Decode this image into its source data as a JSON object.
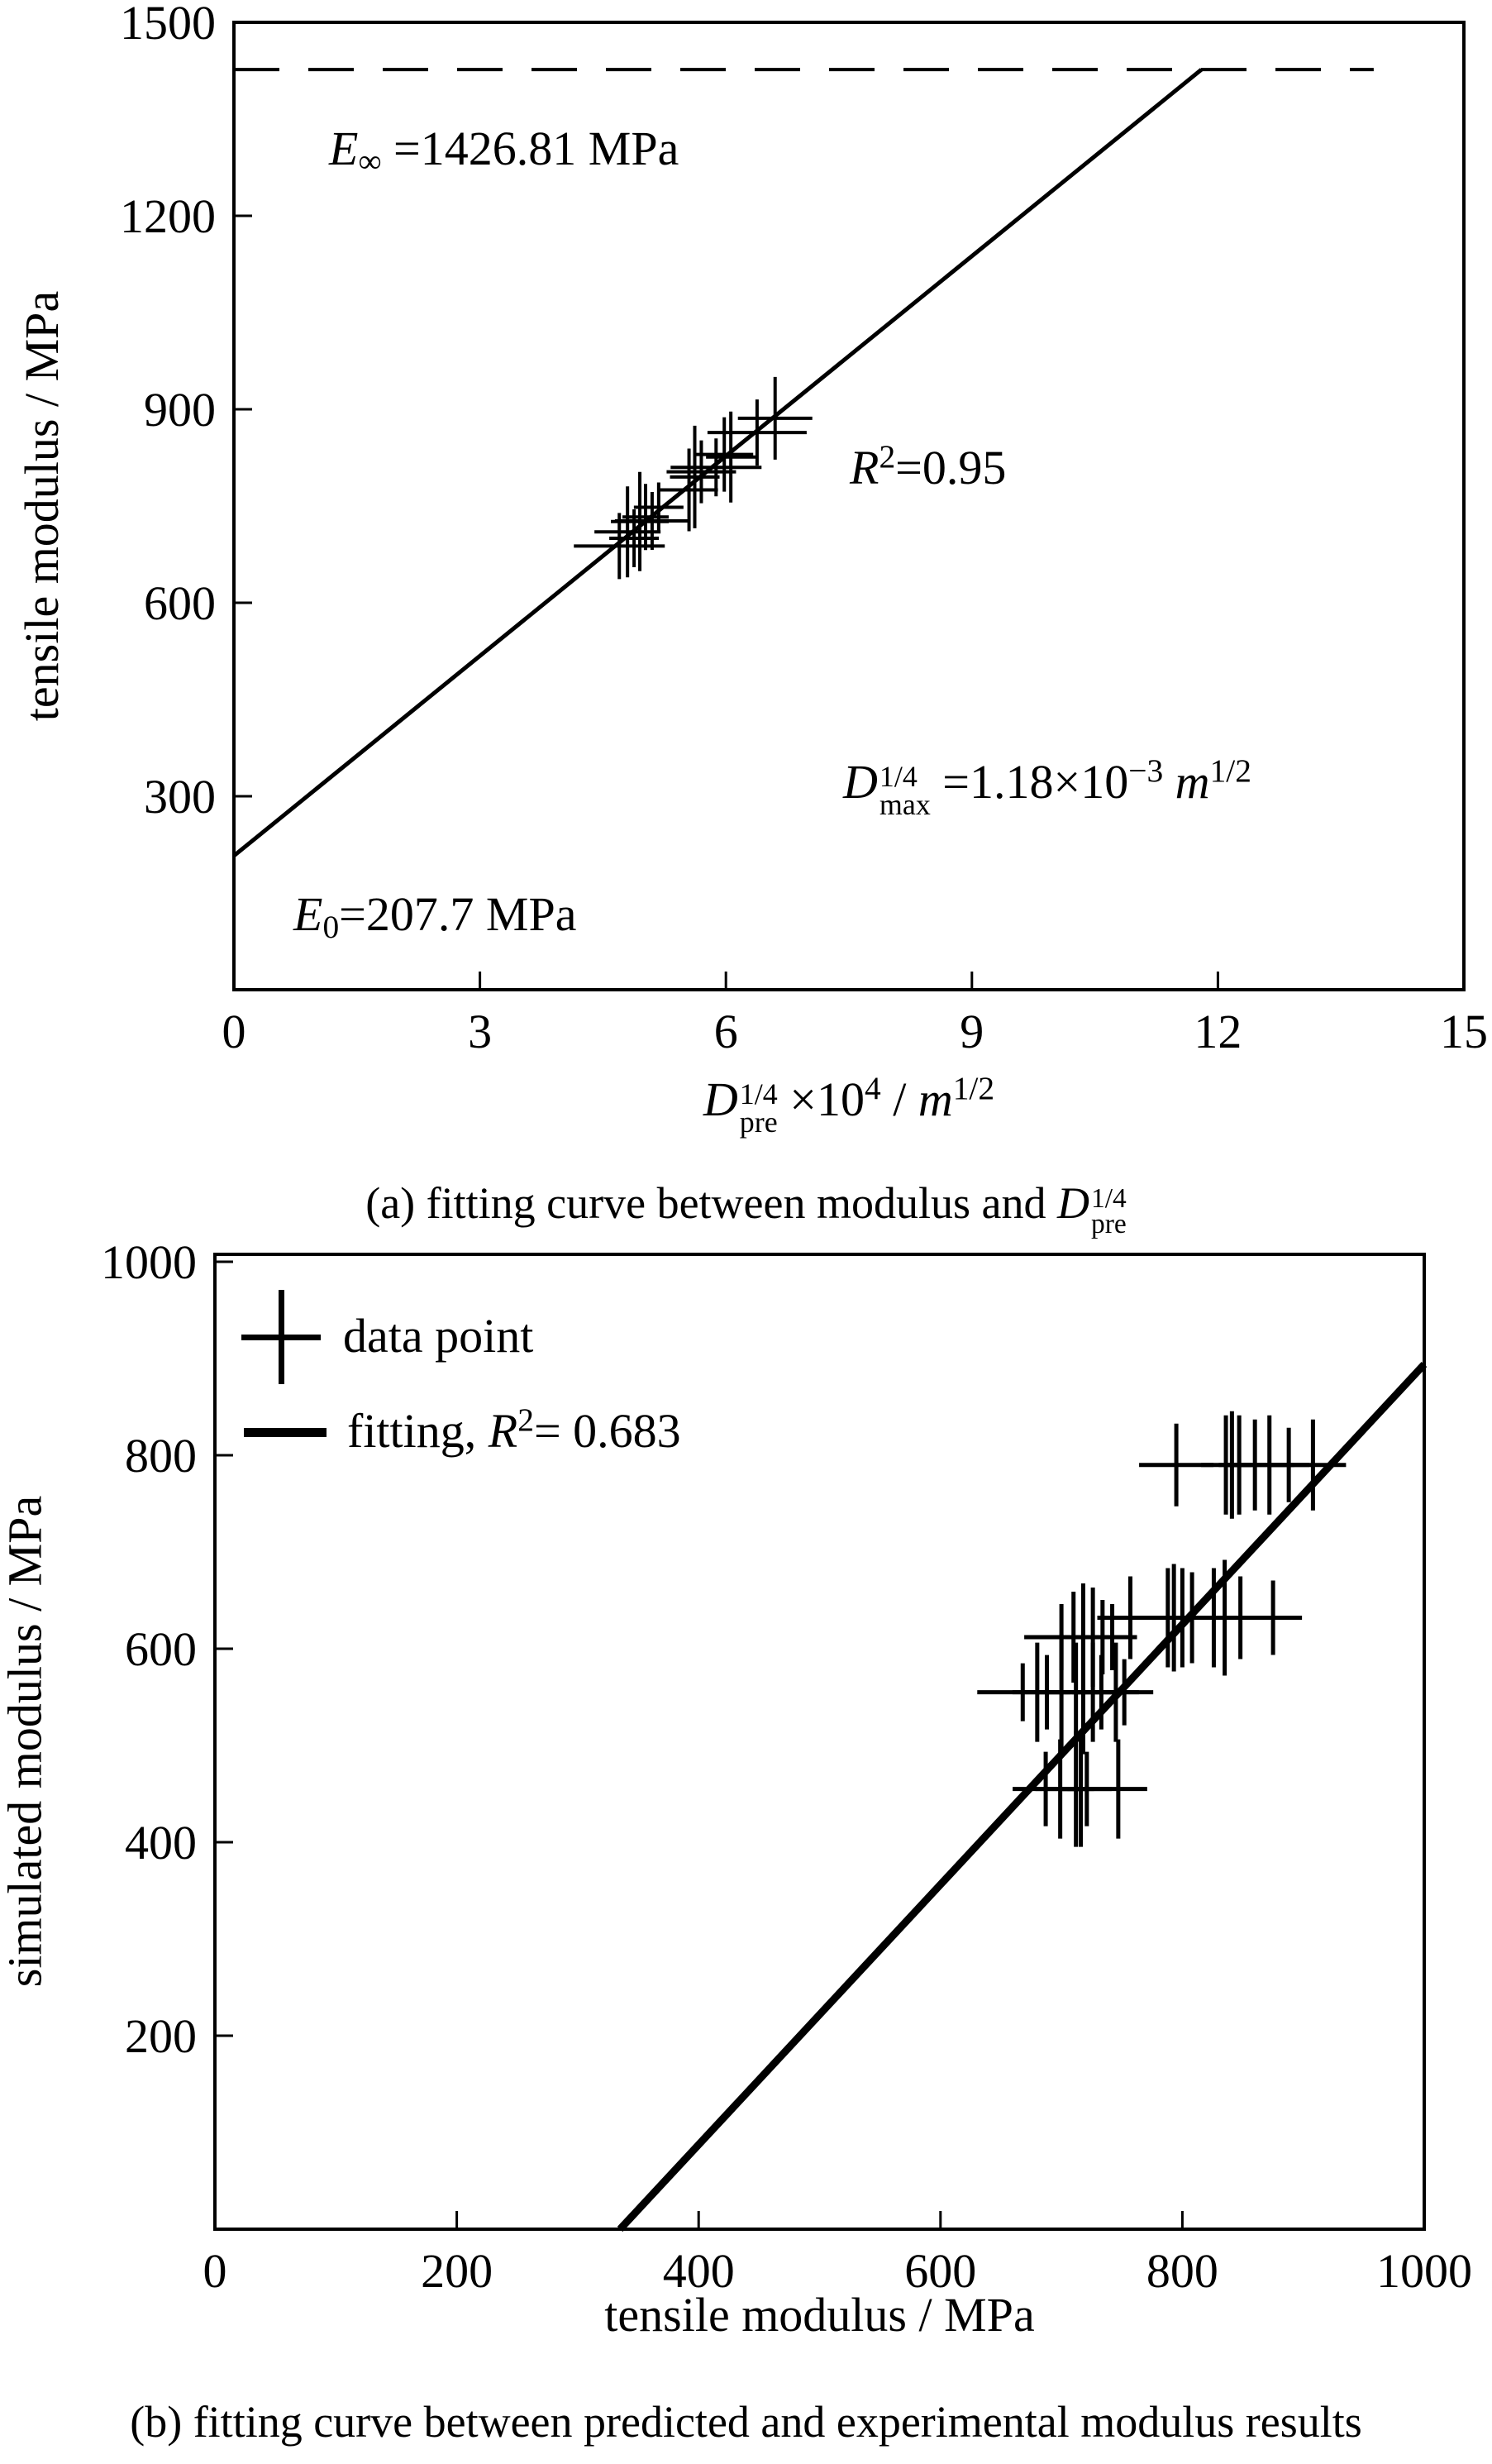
{
  "page": {
    "background": "#ffffff",
    "ink": "#000000"
  },
  "caption_a": {
    "prefix": "(a) fitting curve between modulus and ",
    "symbol": "D",
    "sup": "1/4",
    "sub": "pre"
  },
  "caption_b": "(b) fitting curve between predicted and experimental modulus results",
  "plot_a": {
    "ylabel": "tensile modulus / MPa",
    "xlabel": {
      "symbol": "D",
      "sup": "1/4",
      "sub": "pre",
      "mid": " ×10",
      "mid_sup": "4",
      "tail": " / ",
      "unit": "m",
      "unit_sup": "1/2"
    },
    "annotations": {
      "e_inf": {
        "symbol": "E",
        "sub": "∞",
        "value": " =1426.81 MPa"
      },
      "r2": {
        "symbol": "R",
        "sup": "2",
        "value": "=0.95"
      },
      "d_max": {
        "symbol": "D",
        "sup": "1/4",
        "sub": "max",
        "eq": " =1.18×10",
        "exp": "−3",
        "unit": " m",
        "unit_sup": "1/2"
      },
      "e0": {
        "symbol": "E",
        "sub": "0",
        "value": "=207.7 MPa"
      }
    }
  },
  "plot_b": {
    "ylabel": "simulated modulus / MPa",
    "xlabel": "tensile modulus / MPa",
    "legend": {
      "point": {
        "label": "data point"
      },
      "fit": {
        "prefix": "fitting, ",
        "symbol": "R",
        "sup": "2",
        "value": "= 0.683"
      }
    }
  },
  "chart_data": [
    {
      "id": "a",
      "type": "scatter",
      "title": "(a) fitting curve between modulus and D_pre^(1/4)",
      "xlabel": "D_pre^(1/4) ×10^4 / m^(1/2)",
      "ylabel": "tensile modulus / MPa",
      "xlim": [
        0,
        15
      ],
      "ylim": [
        0,
        1500
      ],
      "x_ticks": [
        0,
        3,
        6,
        9,
        12,
        15
      ],
      "y_ticks": [
        300,
        600,
        900,
        1200,
        1500
      ],
      "grid": false,
      "marker": "plus",
      "E0_MPa": 207.7,
      "E_inf_MPa": 1426.81,
      "R2": 0.95,
      "D_max_quarter": "1.18×10^-3 m^(1/2)",
      "fit_line": {
        "x1": 0,
        "y1": 207.7,
        "x2": 11.8,
        "y2": 1426.81
      },
      "asymptote": {
        "y": 1426.81,
        "x1": 0,
        "x2": 13.9
      },
      "points": [
        [
          4.7,
          688,
          55,
          40
        ],
        [
          4.8,
          710,
          40,
          55
        ],
        [
          4.88,
          700,
          30,
          35
        ],
        [
          4.95,
          726,
          35,
          60
        ],
        [
          5.02,
          733,
          28,
          40
        ],
        [
          5.1,
          727,
          45,
          35
        ],
        [
          5.18,
          748,
          30,
          30
        ],
        [
          5.55,
          775,
          35,
          50
        ],
        [
          5.62,
          795,
          30,
          62
        ],
        [
          5.7,
          803,
          42,
          38
        ],
        [
          5.88,
          810,
          55,
          35
        ],
        [
          5.98,
          830,
          35,
          45
        ],
        [
          6.06,
          826,
          30,
          55
        ],
        [
          6.38,
          864,
          60,
          40
        ],
        [
          6.6,
          886,
          45,
          50
        ]
      ]
    },
    {
      "id": "b",
      "type": "scatter",
      "title": "(b) fitting curve between predicted and experimental modulus results",
      "xlabel": "tensile modulus / MPa",
      "ylabel": "simulated modulus / MPa",
      "xlim": [
        0,
        1000
      ],
      "ylim": [
        0,
        1000
      ],
      "x_ticks": [
        0,
        200,
        400,
        600,
        800,
        1000
      ],
      "y_ticks": [
        200,
        400,
        600,
        800,
        1000
      ],
      "grid": false,
      "marker": "plus",
      "R2": 0.683,
      "legend": [
        "data point",
        "fitting, R²= 0.683"
      ],
      "fit_line": {
        "x1": 335,
        "y1": 0,
        "x2": 1000,
        "y2": 894
      },
      "points": [
        [
          687,
          455,
          40,
          45
        ],
        [
          699,
          455,
          30,
          60
        ],
        [
          712,
          455,
          16,
          70
        ],
        [
          716,
          455,
          16,
          70
        ],
        [
          721,
          455,
          30,
          45
        ],
        [
          747,
          455,
          35,
          60
        ],
        [
          668,
          555,
          55,
          35
        ],
        [
          680,
          555,
          30,
          60
        ],
        [
          688,
          555,
          28,
          45
        ],
        [
          700,
          555,
          30,
          70
        ],
        [
          712,
          555,
          18,
          60
        ],
        [
          718,
          555,
          18,
          75
        ],
        [
          726,
          555,
          25,
          60
        ],
        [
          733,
          555,
          30,
          45
        ],
        [
          745,
          555,
          28,
          60
        ],
        [
          752,
          555,
          35,
          40
        ],
        [
          700,
          612,
          45,
          40
        ],
        [
          710,
          612,
          28,
          55
        ],
        [
          718,
          612,
          20,
          65
        ],
        [
          726,
          612,
          20,
          60
        ],
        [
          734,
          612,
          28,
          45
        ],
        [
          742,
          612,
          30,
          40
        ],
        [
          757,
          632,
          40,
          50
        ],
        [
          788,
          632,
          30,
          60
        ],
        [
          793,
          632,
          18,
          65
        ],
        [
          800,
          632,
          18,
          60
        ],
        [
          808,
          632,
          30,
          55
        ],
        [
          826,
          632,
          30,
          60
        ],
        [
          835,
          632,
          22,
          70
        ],
        [
          848,
          632,
          30,
          50
        ],
        [
          875,
          632,
          35,
          45
        ],
        [
          795,
          790,
          45,
          50
        ],
        [
          836,
          790,
          30,
          60
        ],
        [
          841,
          790,
          16,
          65
        ],
        [
          847,
          790,
          16,
          60
        ],
        [
          860,
          790,
          30,
          55
        ],
        [
          872,
          790,
          30,
          60
        ],
        [
          888,
          790,
          25,
          45
        ],
        [
          908,
          790,
          40,
          55
        ]
      ]
    }
  ]
}
